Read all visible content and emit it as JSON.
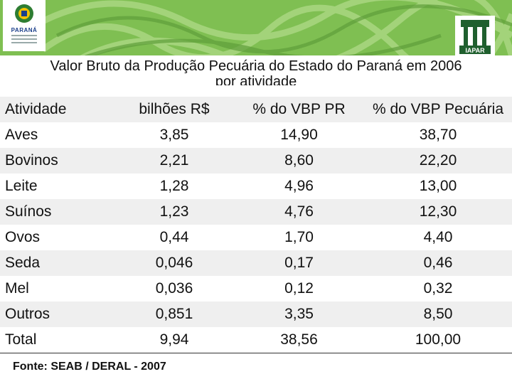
{
  "header": {
    "left_logo_text": "PARANÁ",
    "right_logo_text": "IAPAR"
  },
  "title": {
    "line1": "Valor Bruto da Produção Pecuária do Estado do Paraná em 2006",
    "line2": "por atividade"
  },
  "table": {
    "headers": [
      "Atividade",
      "bilhões R$",
      "% do VBP PR",
      "% do VBP Pecuária"
    ],
    "rows": [
      [
        "Aves",
        "3,85",
        "14,90",
        "38,70"
      ],
      [
        "Bovinos",
        "2,21",
        "8,60",
        "22,20"
      ],
      [
        "Leite",
        "1,28",
        "4,96",
        "13,00"
      ],
      [
        "Suínos",
        "1,23",
        "4,76",
        "12,30"
      ],
      [
        "Ovos",
        "0,44",
        "1,70",
        "4,40"
      ],
      [
        "Seda",
        "0,046",
        "0,17",
        "0,46"
      ],
      [
        "Mel",
        "0,036",
        "0,12",
        "0,32"
      ],
      [
        "Outros",
        "0,851",
        "3,35",
        "8,50"
      ],
      [
        "Total",
        "9,94",
        "38,56",
        "100,00"
      ]
    ]
  },
  "footer": {
    "source": "Fonte: SEAB / DERAL - 2007"
  },
  "colors": {
    "header_green": "#7fbf52",
    "stripe_gray": "#efefef",
    "brand_blue": "#1a3f8a"
  }
}
